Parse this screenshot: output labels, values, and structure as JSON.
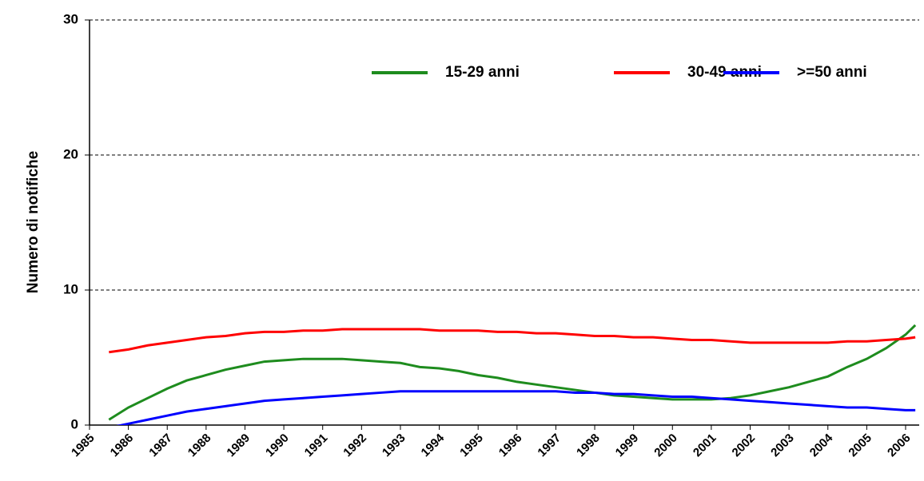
{
  "chart_data": {
    "type": "line",
    "y_label": "Numero di notifiche",
    "x": [
      1985.5,
      1986,
      1986.5,
      1987,
      1987.5,
      1988,
      1988.5,
      1989,
      1989.5,
      1990,
      1990.5,
      1991,
      1991.5,
      1992,
      1992.5,
      1993,
      1993.5,
      1994,
      1994.5,
      1995,
      1995.5,
      1996,
      1996.5,
      1997,
      1997.5,
      1998,
      1998.5,
      1999,
      1999.5,
      2000,
      2000.5,
      2001,
      2001.5,
      2002,
      2002.5,
      2003,
      2003.5,
      2004,
      2004.5,
      2005,
      2005.5,
      2006,
      2006.25
    ],
    "series": [
      {
        "name": "15-29 anni",
        "color": "#1e8c1e",
        "values": [
          0.4,
          1.3,
          2.0,
          2.7,
          3.3,
          3.7,
          4.1,
          4.4,
          4.7,
          4.8,
          4.9,
          4.9,
          4.9,
          4.8,
          4.7,
          4.6,
          4.3,
          4.2,
          4.0,
          3.7,
          3.5,
          3.2,
          3.0,
          2.8,
          2.6,
          2.4,
          2.2,
          2.1,
          2.0,
          1.9,
          1.9,
          1.9,
          2.0,
          2.2,
          2.5,
          2.8,
          3.2,
          3.6,
          4.3,
          4.9,
          5.7,
          6.7,
          7.4
        ]
      },
      {
        "name": "30-49 anni",
        "color": "#ff0000",
        "values": [
          5.4,
          5.6,
          5.9,
          6.1,
          6.3,
          6.5,
          6.6,
          6.8,
          6.9,
          6.9,
          7.0,
          7.0,
          7.1,
          7.1,
          7.1,
          7.1,
          7.1,
          7.0,
          7.0,
          7.0,
          6.9,
          6.9,
          6.8,
          6.8,
          6.7,
          6.6,
          6.6,
          6.5,
          6.5,
          6.4,
          6.3,
          6.3,
          6.2,
          6.1,
          6.1,
          6.1,
          6.1,
          6.1,
          6.2,
          6.2,
          6.3,
          6.4,
          6.5
        ]
      },
      {
        "name": ">=50 anni",
        "color": "#0000ff",
        "values": [
          -0.2,
          0.1,
          0.4,
          0.7,
          1.0,
          1.2,
          1.4,
          1.6,
          1.8,
          1.9,
          2.0,
          2.1,
          2.2,
          2.3,
          2.4,
          2.5,
          2.5,
          2.5,
          2.5,
          2.5,
          2.5,
          2.5,
          2.5,
          2.5,
          2.4,
          2.4,
          2.3,
          2.3,
          2.2,
          2.1,
          2.1,
          2.0,
          1.9,
          1.8,
          1.7,
          1.6,
          1.5,
          1.4,
          1.3,
          1.3,
          1.2,
          1.1,
          1.1
        ]
      }
    ],
    "xlim": [
      1985,
      2006.35
    ],
    "xticks": [
      1985,
      1986,
      1987,
      1988,
      1989,
      1990,
      1991,
      1992,
      1993,
      1994,
      1995,
      1996,
      1997,
      1998,
      1999,
      2000,
      2001,
      2002,
      2003,
      2004,
      2005,
      2006
    ],
    "ylim": [
      0,
      30
    ],
    "yticks": [
      0,
      10,
      20,
      30
    ],
    "grid": true,
    "legend": "top"
  }
}
